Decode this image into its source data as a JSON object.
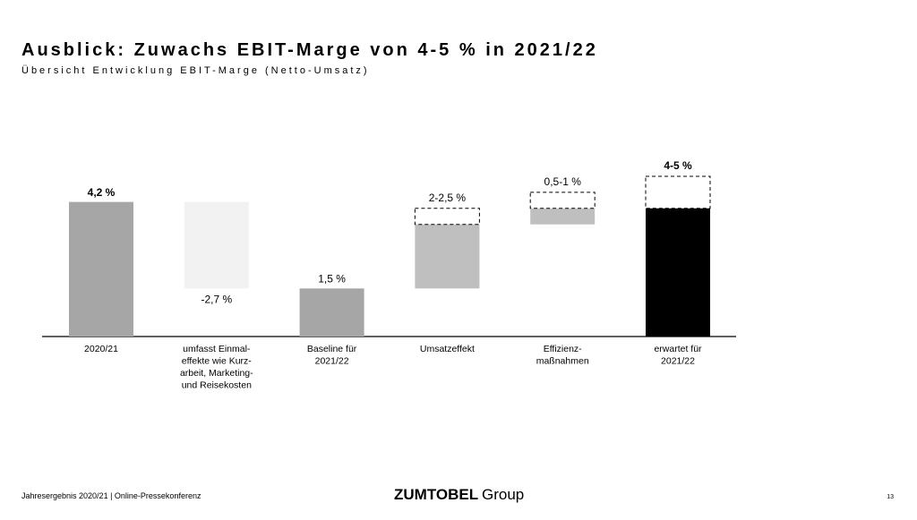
{
  "chart_data": {
    "type": "waterfall",
    "title": "Ausblick: Zuwachs EBIT-Marge von 4-5 % in 2021/22",
    "subtitle": "Übersicht Entwicklung EBIT-Marge (Netto-Umsatz)",
    "categories": [
      [
        "2020/21"
      ],
      [
        "umfasst Einmal-",
        "effekte wie Kurz-",
        "arbeit, Marketing-",
        "und Reisekosten"
      ],
      [
        "Baseline für",
        "2021/22"
      ],
      [
        "Umsatzeffekt"
      ],
      [
        "Effizienz-",
        "maßnahmen"
      ],
      [
        "erwartet für",
        "2021/22"
      ]
    ],
    "measures": [
      "absolute",
      "relative",
      "total",
      "relative",
      "relative",
      "total"
    ],
    "low": [
      4.2,
      -2.7,
      1.5,
      2,
      0.5,
      4
    ],
    "high": [
      null,
      null,
      null,
      2.5,
      1,
      5
    ],
    "value_labels": [
      "4,2 %",
      "-2,7 %",
      "1,5 %",
      "2-2,5 %",
      "0,5-1 %",
      "4-5 %"
    ],
    "bold_labels": [
      true,
      false,
      false,
      false,
      false,
      true
    ],
    "colors": [
      "#a6a6a6",
      "#f2f2f2",
      "#a6a6a6",
      "#bfbfbf",
      "#bfbfbf",
      "#000000"
    ]
  },
  "footer": {
    "text": "Jahresergebnis 2020/21 | Online-Pressekonferenz",
    "logo": "ZUMTOBEL",
    "logo_suffix": "Group",
    "page": "13"
  }
}
